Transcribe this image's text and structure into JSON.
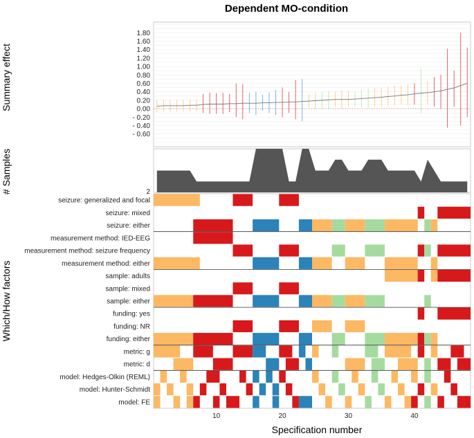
{
  "chart_data": {
    "type": "specification-curve",
    "title": "Dependent MO-condition",
    "xlabel": "Specification number",
    "n_specs": 48,
    "x_ticks": [
      10,
      20,
      30,
      40
    ],
    "top_panel": {
      "ylabel": "Summary effect",
      "ylim": [
        -0.9,
        2.05
      ],
      "y_ticks": [
        "1.80",
        "1.60",
        "1.40",
        "1.20",
        "1.00",
        "0.80",
        "0.60",
        "0.40",
        "0.20",
        "0.00",
        "- 0.20",
        "- 0.40",
        "- 0.60"
      ],
      "y_tick_values": [
        1.8,
        1.6,
        1.4,
        1.2,
        1.0,
        0.8,
        0.6,
        0.4,
        0.2,
        0.0,
        -0.2,
        -0.4,
        -0.6
      ],
      "estimates": [
        0.06,
        0.07,
        0.07,
        0.07,
        0.07,
        0.08,
        0.08,
        0.1,
        0.11,
        0.11,
        0.11,
        0.12,
        0.12,
        0.13,
        0.13,
        0.13,
        0.14,
        0.14,
        0.15,
        0.15,
        0.16,
        0.16,
        0.17,
        0.18,
        0.19,
        0.2,
        0.21,
        0.22,
        0.22,
        0.22,
        0.23,
        0.24,
        0.25,
        0.26,
        0.27,
        0.29,
        0.3,
        0.32,
        0.33,
        0.35,
        0.37,
        0.38,
        0.4,
        0.42,
        0.46,
        0.49,
        0.55,
        0.6
      ],
      "ci_low": [
        -0.08,
        -0.07,
        -0.07,
        -0.07,
        -0.07,
        -0.06,
        -0.06,
        -0.1,
        -0.12,
        -0.12,
        -0.12,
        -0.08,
        -0.2,
        -0.25,
        -0.1,
        -0.15,
        -0.05,
        -0.1,
        -0.15,
        -0.2,
        -0.1,
        -0.25,
        -0.3,
        0.02,
        0.0,
        -0.02,
        0.0,
        0.05,
        0.0,
        0.04,
        0.05,
        0.03,
        0.02,
        0.05,
        0.05,
        0.06,
        0.08,
        0.1,
        0.08,
        0.1,
        -0.1,
        0.1,
        0.05,
        0.0,
        -0.45,
        0.05,
        -0.4,
        -0.2
      ],
      "ci_high": [
        0.2,
        0.21,
        0.21,
        0.21,
        0.21,
        0.22,
        0.22,
        0.35,
        0.38,
        0.37,
        0.38,
        0.35,
        0.6,
        0.58,
        0.38,
        0.4,
        0.33,
        0.38,
        0.45,
        0.5,
        0.4,
        0.68,
        0.7,
        0.34,
        0.38,
        0.4,
        0.42,
        0.4,
        0.44,
        0.42,
        0.4,
        0.45,
        0.48,
        0.5,
        0.5,
        0.52,
        0.55,
        0.55,
        0.58,
        0.6,
        0.95,
        0.65,
        0.75,
        0.8,
        1.42,
        0.9,
        1.8,
        1.45
      ],
      "ci_colors": [
        "#fdb863",
        "#fdb863",
        "#fdb863",
        "#fdb863",
        "#fdb863",
        "#fdb863",
        "#fdb863",
        "#d7191c",
        "#d7191c",
        "#d7191c",
        "#d7191c",
        "#d7191c",
        "#d7191c",
        "#d7191c",
        "#4393c3",
        "#4393c3",
        "#4393c3",
        "#4393c3",
        "#4393c3",
        "#d7191c",
        "#d7191c",
        "#d7191c",
        "#4393c3",
        "#fdb863",
        "#fdb863",
        "#a6dba0",
        "#a6dba0",
        "#fdb863",
        "#fdb863",
        "#fdb863",
        "#a6dba0",
        "#a6dba0",
        "#a6dba0",
        "#fdb863",
        "#fdb863",
        "#fdb863",
        "#fdb863",
        "#fdb863",
        "#fdb863",
        "#d7191c",
        "#a6dba0",
        "#fdb863",
        "#d7191c",
        "#d7191c",
        "#d7191c",
        "#d7191c",
        "#d7191c",
        "#d7191c"
      ]
    },
    "middle_panel": {
      "ylabel": "# Samples",
      "y_tick": "2",
      "counts": [
        3,
        3,
        3,
        3,
        3,
        3,
        2,
        2,
        2,
        2,
        2,
        2,
        2,
        2,
        2,
        5,
        5,
        5,
        5,
        5,
        2,
        2,
        5,
        5,
        3,
        3,
        3,
        4,
        4,
        3,
        3,
        3,
        4,
        4,
        4,
        3,
        3,
        3,
        3,
        3,
        2,
        4,
        3,
        2,
        2,
        2,
        2,
        2
      ],
      "ymax": 5
    },
    "bottom_panel": {
      "ylabel": "Which/How factors",
      "rows": [
        "seizure: generalized and focal",
        "seizure: mixed",
        "seizure: either",
        "measurement method: IED-EEG",
        "measurement method: seizure frequency",
        "measurement method: either",
        "sample: adults",
        "sample: mixed",
        "sample: either",
        "funding: yes",
        "funding: NR",
        "funding: either",
        "metric: g",
        "metric: d",
        "model: Hedges-Olkin (REML)",
        "model: Hunter-Schmidt",
        "model: FE"
      ],
      "group_separators_after": [
        2,
        5,
        8,
        11,
        13
      ],
      "legend_colors": {
        "orange": "#fdb863",
        "red": "#d7191c",
        "blue": "#2b83ba",
        "green": "#a6dba0"
      },
      "cells": [
        [
          1,
          7,
          0,
          "#fdb863"
        ],
        [
          13,
          15,
          0,
          "#d7191c"
        ],
        [
          20,
          22,
          0,
          "#d7191c"
        ],
        [
          41,
          41,
          1,
          "#d7191c"
        ],
        [
          44,
          48,
          1,
          "#d7191c"
        ],
        [
          7,
          12,
          2,
          "#d7191c"
        ],
        [
          16,
          19,
          2,
          "#2b83ba"
        ],
        [
          23,
          24,
          2,
          "#2b83ba"
        ],
        [
          25,
          27,
          2,
          "#fdb863"
        ],
        [
          28,
          29,
          2,
          "#a6dba0"
        ],
        [
          30,
          32,
          2,
          "#fdb863"
        ],
        [
          33,
          35,
          2,
          "#a6dba0"
        ],
        [
          36,
          40,
          2,
          "#fdb863"
        ],
        [
          42,
          42,
          2,
          "#a6dba0"
        ],
        [
          43,
          43,
          2,
          "#fdb863"
        ],
        [
          7,
          12,
          3,
          "#d7191c"
        ],
        [
          13,
          15,
          4,
          "#d7191c"
        ],
        [
          20,
          22,
          4,
          "#d7191c"
        ],
        [
          28,
          29,
          4,
          "#a6dba0"
        ],
        [
          33,
          35,
          4,
          "#a6dba0"
        ],
        [
          41,
          41,
          4,
          "#d7191c"
        ],
        [
          42,
          42,
          4,
          "#a6dba0"
        ],
        [
          44,
          48,
          4,
          "#d7191c"
        ],
        [
          1,
          7,
          5,
          "#fdb863"
        ],
        [
          16,
          19,
          5,
          "#2b83ba"
        ],
        [
          23,
          24,
          5,
          "#2b83ba"
        ],
        [
          25,
          27,
          5,
          "#fdb863"
        ],
        [
          30,
          32,
          5,
          "#fdb863"
        ],
        [
          36,
          40,
          5,
          "#fdb863"
        ],
        [
          43,
          43,
          5,
          "#fdb863"
        ],
        [
          36,
          40,
          6,
          "#fdb863"
        ],
        [
          41,
          41,
          6,
          "#d7191c"
        ],
        [
          43,
          43,
          6,
          "#fdb863"
        ],
        [
          44,
          48,
          6,
          "#d7191c"
        ],
        [
          13,
          15,
          7,
          "#d7191c"
        ],
        [
          20,
          22,
          7,
          "#d7191c"
        ],
        [
          1,
          7,
          8,
          "#fdb863"
        ],
        [
          7,
          12,
          8,
          "#d7191c"
        ],
        [
          16,
          19,
          8,
          "#2b83ba"
        ],
        [
          23,
          24,
          8,
          "#2b83ba"
        ],
        [
          25,
          27,
          8,
          "#fdb863"
        ],
        [
          28,
          29,
          8,
          "#a6dba0"
        ],
        [
          30,
          32,
          8,
          "#fdb863"
        ],
        [
          33,
          35,
          8,
          "#a6dba0"
        ],
        [
          42,
          42,
          8,
          "#a6dba0"
        ],
        [
          41,
          41,
          9,
          "#d7191c"
        ],
        [
          44,
          48,
          9,
          "#d7191c"
        ],
        [
          13,
          15,
          10,
          "#d7191c"
        ],
        [
          20,
          22,
          10,
          "#d7191c"
        ],
        [
          25,
          27,
          10,
          "#fdb863"
        ],
        [
          30,
          32,
          10,
          "#fdb863"
        ],
        [
          1,
          7,
          11,
          "#fdb863"
        ],
        [
          7,
          12,
          11,
          "#d7191c"
        ],
        [
          16,
          19,
          11,
          "#2b83ba"
        ],
        [
          23,
          24,
          11,
          "#2b83ba"
        ],
        [
          28,
          29,
          11,
          "#a6dba0"
        ],
        [
          33,
          35,
          11,
          "#a6dba0"
        ],
        [
          36,
          40,
          11,
          "#fdb863"
        ],
        [
          41,
          41,
          11,
          "#d7191c"
        ],
        [
          42,
          42,
          11,
          "#a6dba0"
        ],
        [
          43,
          43,
          11,
          "#fdb863"
        ],
        [
          1,
          4,
          12,
          "#fdb863"
        ],
        [
          7,
          9,
          12,
          "#d7191c"
        ],
        [
          13,
          15,
          12,
          "#d7191c"
        ],
        [
          16,
          17,
          12,
          "#2b83ba"
        ],
        [
          20,
          21,
          12,
          "#d7191c"
        ],
        [
          23,
          23,
          12,
          "#2b83ba"
        ],
        [
          25,
          25,
          12,
          "#fdb863"
        ],
        [
          28,
          28,
          12,
          "#a6dba0"
        ],
        [
          33,
          34,
          12,
          "#a6dba0"
        ],
        [
          36,
          39,
          12,
          "#fdb863"
        ],
        [
          41,
          41,
          12,
          "#d7191c"
        ],
        [
          43,
          43,
          12,
          "#fdb863"
        ],
        [
          46,
          47,
          12,
          "#d7191c"
        ],
        [
          4,
          6,
          13,
          "#fdb863"
        ],
        [
          10,
          12,
          13,
          "#d7191c"
        ],
        [
          18,
          19,
          13,
          "#2b83ba"
        ],
        [
          21,
          22,
          13,
          "#d7191c"
        ],
        [
          24,
          24,
          13,
          "#2b83ba"
        ],
        [
          30,
          32,
          13,
          "#fdb863"
        ],
        [
          34,
          35,
          13,
          "#a6dba0"
        ],
        [
          38,
          39,
          13,
          "#fdb863"
        ],
        [
          40,
          40,
          13,
          "#fdb863"
        ],
        [
          42,
          42,
          13,
          "#a6dba0"
        ],
        [
          44,
          45,
          13,
          "#d7191c"
        ],
        [
          47,
          48,
          13,
          "#d7191c"
        ],
        [
          2,
          2,
          14,
          "#fdb863"
        ],
        [
          5,
          5,
          14,
          "#fdb863"
        ],
        [
          9,
          10,
          14,
          "#d7191c"
        ],
        [
          14,
          14,
          14,
          "#d7191c"
        ],
        [
          16,
          16,
          14,
          "#2b83ba"
        ],
        [
          18,
          18,
          14,
          "#2b83ba"
        ],
        [
          20,
          20,
          14,
          "#d7191c"
        ],
        [
          25,
          25,
          14,
          "#fdb863"
        ],
        [
          28,
          28,
          14,
          "#a6dba0"
        ],
        [
          31,
          31,
          14,
          "#fdb863"
        ],
        [
          34,
          34,
          14,
          "#a6dba0"
        ],
        [
          37,
          37,
          14,
          "#fdb863"
        ],
        [
          40,
          40,
          14,
          "#fdb863"
        ],
        [
          42,
          42,
          14,
          "#a6dba0"
        ],
        [
          45,
          45,
          14,
          "#d7191c"
        ],
        [
          1,
          1,
          15,
          "#fdb863"
        ],
        [
          3,
          3,
          15,
          "#fdb863"
        ],
        [
          6,
          6,
          15,
          "#fdb863"
        ],
        [
          8,
          8,
          15,
          "#d7191c"
        ],
        [
          11,
          11,
          15,
          "#d7191c"
        ],
        [
          15,
          15,
          15,
          "#d7191c"
        ],
        [
          17,
          17,
          15,
          "#2b83ba"
        ],
        [
          19,
          19,
          15,
          "#2b83ba"
        ],
        [
          21,
          21,
          15,
          "#d7191c"
        ],
        [
          26,
          26,
          15,
          "#fdb863"
        ],
        [
          29,
          29,
          15,
          "#a6dba0"
        ],
        [
          32,
          32,
          15,
          "#fdb863"
        ],
        [
          35,
          35,
          15,
          "#a6dba0"
        ],
        [
          38,
          38,
          15,
          "#fdb863"
        ],
        [
          41,
          41,
          15,
          "#d7191c"
        ],
        [
          43,
          43,
          15,
          "#fdb863"
        ],
        [
          46,
          46,
          15,
          "#d7191c"
        ],
        [
          1,
          1,
          16,
          "#fdb863"
        ],
        [
          4,
          4,
          16,
          "#fdb863"
        ],
        [
          6,
          6,
          16,
          "#fdb863"
        ],
        [
          7,
          7,
          16,
          "#d7191c"
        ],
        [
          10,
          10,
          16,
          "#d7191c"
        ],
        [
          12,
          12,
          16,
          "#d7191c"
        ],
        [
          13,
          13,
          16,
          "#d7191c"
        ],
        [
          16,
          16,
          16,
          "#2b83ba"
        ],
        [
          19,
          19,
          16,
          "#2b83ba"
        ],
        [
          22,
          22,
          16,
          "#d7191c"
        ],
        [
          23,
          24,
          16,
          "#2b83ba"
        ],
        [
          27,
          27,
          16,
          "#fdb863"
        ],
        [
          30,
          30,
          16,
          "#fdb863"
        ],
        [
          33,
          33,
          16,
          "#a6dba0"
        ],
        [
          36,
          36,
          16,
          "#fdb863"
        ],
        [
          39,
          39,
          16,
          "#fdb863"
        ],
        [
          40,
          40,
          16,
          "#d7191c"
        ],
        [
          42,
          42,
          16,
          "#a6dba0"
        ],
        [
          44,
          44,
          16,
          "#d7191c"
        ],
        [
          47,
          47,
          16,
          "#d7191c"
        ],
        [
          48,
          48,
          16,
          "#d7191c"
        ]
      ]
    }
  }
}
